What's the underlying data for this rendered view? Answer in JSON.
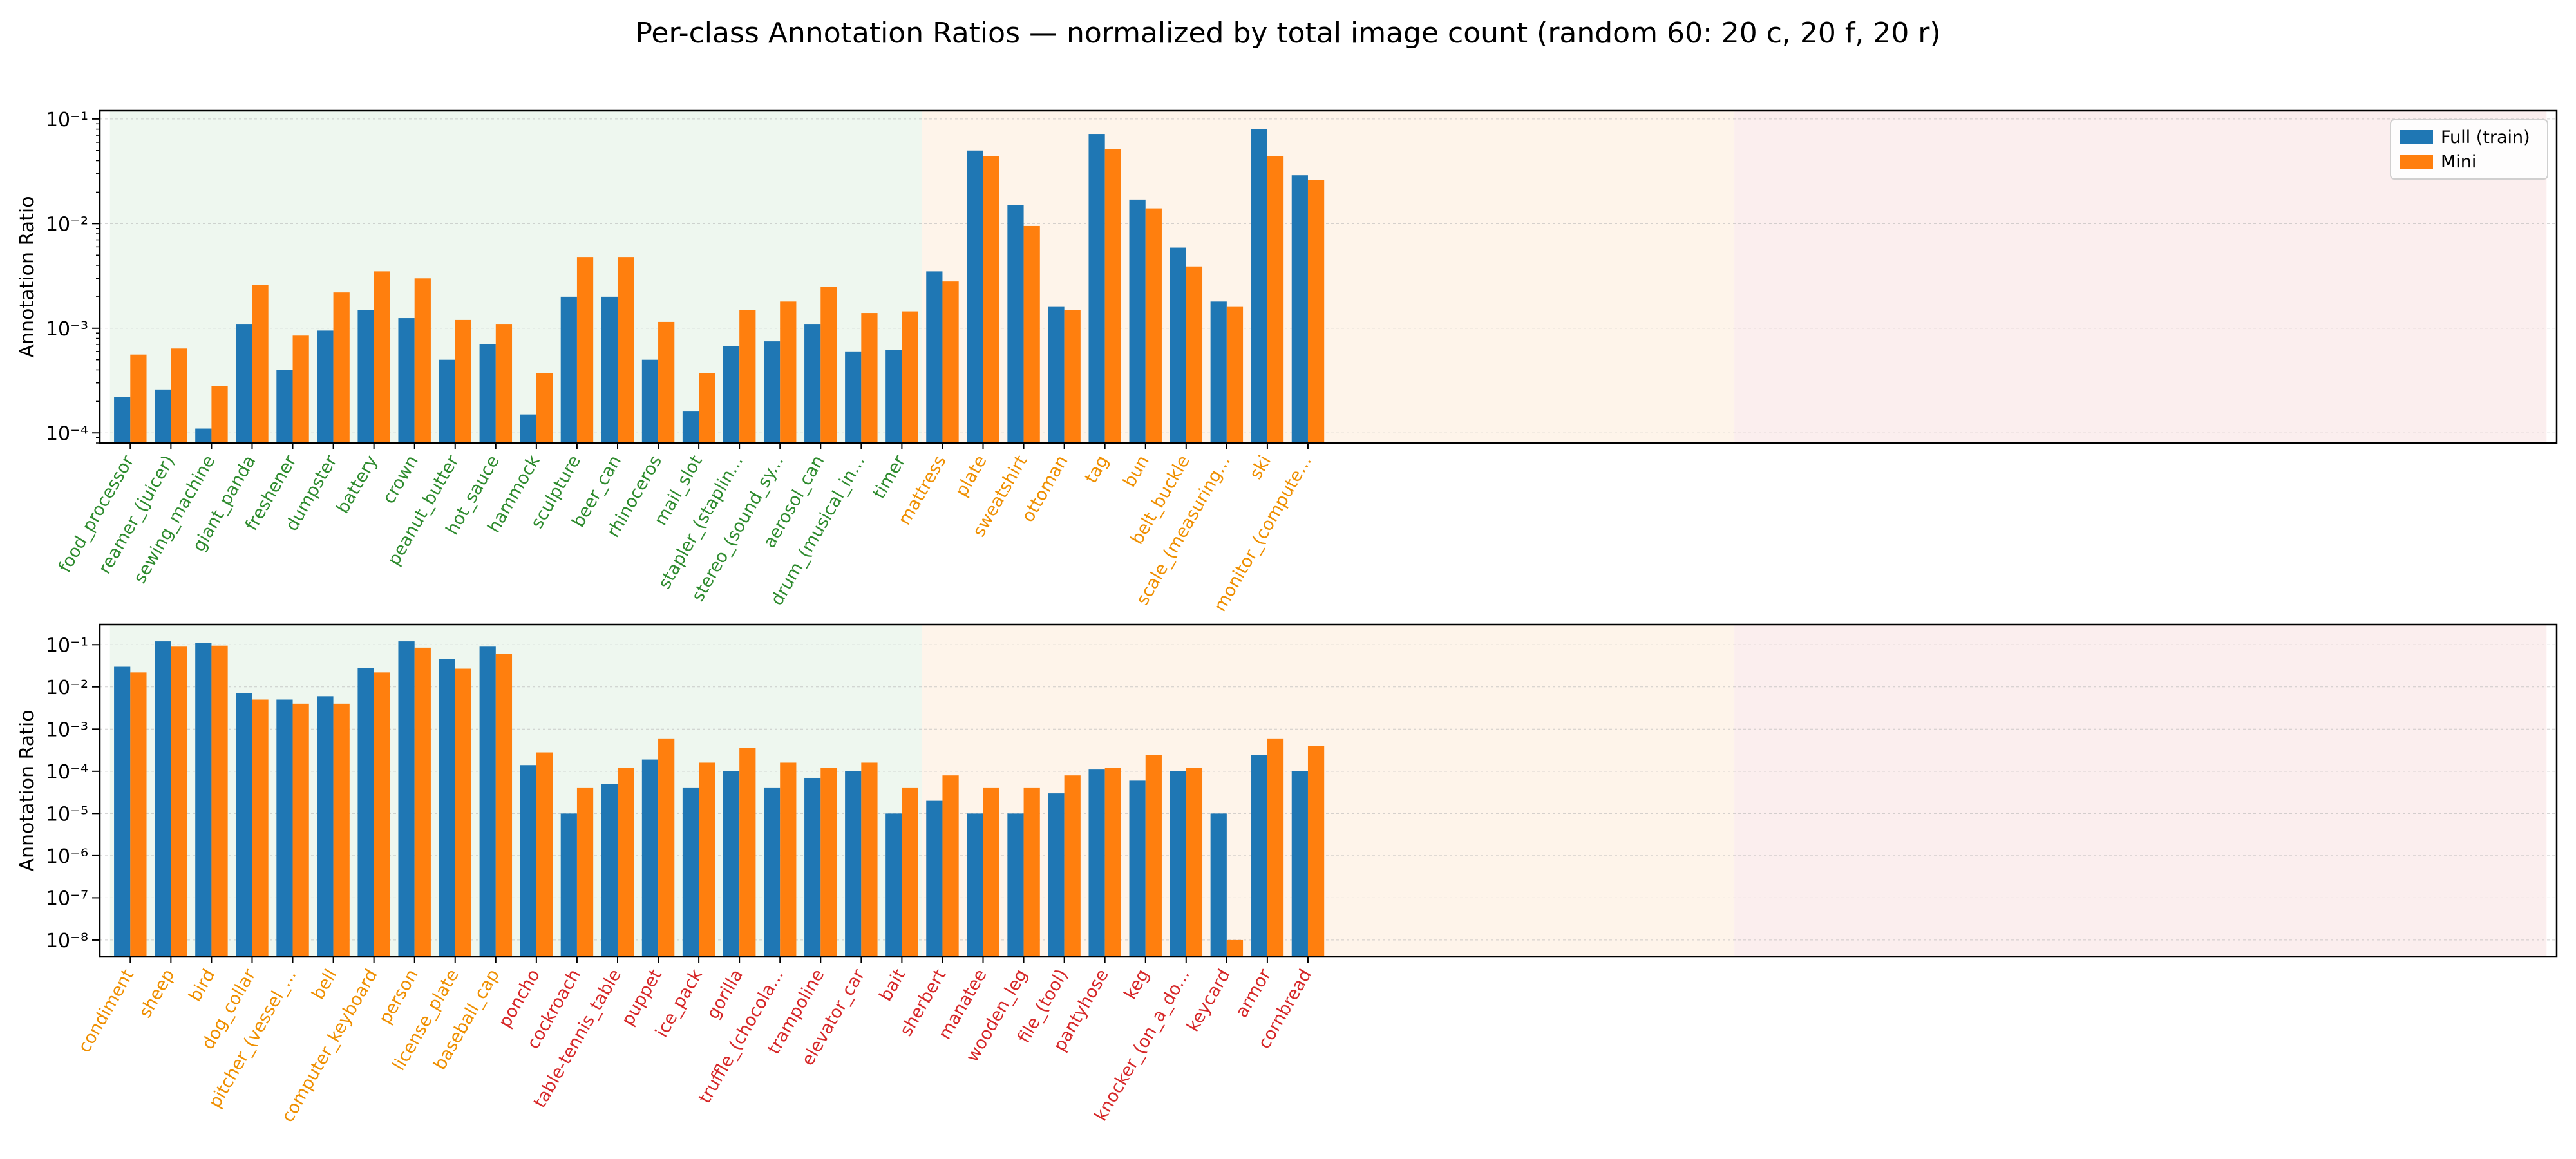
{
  "figure": {
    "title": "Per-class Annotation Ratios — normalized by total image count (random 60: 20 c, 20 f, 20 r)"
  },
  "group_colors": {
    "c": "#2e8b2e",
    "f": "#ef8f00",
    "r": "#d62728"
  },
  "chart_data": [
    {
      "type": "bar",
      "scale": "log",
      "ylabel": "Annotation Ratio",
      "ylim": [
        8e-05,
        0.12
      ],
      "grid": true,
      "legend": "top-right",
      "legend_entries": [
        "Full (train)",
        "Mini"
      ],
      "total_slots": 60,
      "bands": [
        {
          "group": "c",
          "start": 0,
          "end": 20,
          "color": "#e8f4ea"
        },
        {
          "group": "f",
          "start": 20,
          "end": 40,
          "color": "#fdf0e3"
        },
        {
          "group": "r",
          "start": 40,
          "end": 60,
          "color": "#fae8e8"
        }
      ],
      "categories": [
        "food_processor",
        "reamer_(juicer)",
        "sewing_machine",
        "giant_panda",
        "freshener",
        "dumpster",
        "battery",
        "crown",
        "peanut_butter",
        "hot_sauce",
        "hammock",
        "sculpture",
        "beer_can",
        "rhinoceros",
        "mail_slot",
        "stapler_(staplin...",
        "stereo_(sound_sy...",
        "aerosol_can",
        "drum_(musical_in...",
        "timer",
        "mattress",
        "plate",
        "sweatshirt",
        "ottoman",
        "tag",
        "bun",
        "belt_buckle",
        "scale_(measuring...",
        "ski",
        "monitor_(compute..."
      ],
      "category_groups": [
        "c",
        "c",
        "c",
        "c",
        "c",
        "c",
        "c",
        "c",
        "c",
        "c",
        "c",
        "c",
        "c",
        "c",
        "c",
        "c",
        "c",
        "c",
        "c",
        "c",
        "f",
        "f",
        "f",
        "f",
        "f",
        "f",
        "f",
        "f",
        "f",
        "f"
      ],
      "series": [
        {
          "name": "Full (train)",
          "color": "#1f77b4",
          "values": [
            0.00022,
            0.00026,
            0.00011,
            0.0011,
            0.0004,
            0.00095,
            0.0015,
            0.00125,
            0.0005,
            0.0007,
            0.00015,
            0.002,
            0.002,
            0.0005,
            0.00016,
            0.00068,
            0.00075,
            0.0011,
            0.0006,
            0.00062,
            0.0035,
            0.05,
            0.015,
            0.0016,
            0.072,
            0.017,
            0.0059,
            0.0018,
            0.08,
            0.029
          ]
        },
        {
          "name": "Mini",
          "color": "#ff7f0e",
          "values": [
            0.00056,
            0.00064,
            0.00028,
            0.0026,
            0.00085,
            0.0022,
            0.0035,
            0.003,
            0.0012,
            0.0011,
            0.00037,
            0.0048,
            0.0048,
            0.00115,
            0.00037,
            0.0015,
            0.0018,
            0.0025,
            0.0014,
            0.00145,
            0.0028,
            0.044,
            0.0095,
            0.0015,
            0.052,
            0.014,
            0.0039,
            0.0016,
            0.044,
            0.026
          ]
        }
      ]
    },
    {
      "type": "bar",
      "scale": "log",
      "ylabel": "Annotation Ratio",
      "ylim": [
        4e-09,
        0.3
      ],
      "grid": true,
      "legend": "none",
      "total_slots": 60,
      "bands": [
        {
          "group": "c",
          "start": 0,
          "end": 20,
          "color": "#e8f4ea"
        },
        {
          "group": "f",
          "start": 20,
          "end": 40,
          "color": "#fdf0e3"
        },
        {
          "group": "r",
          "start": 40,
          "end": 60,
          "color": "#fae8e8"
        }
      ],
      "categories": [
        "condiment",
        "sheep",
        "bird",
        "dog_collar",
        "pitcher_(vessel_...",
        "bell",
        "computer_keyboard",
        "person",
        "license_plate",
        "baseball_cap",
        "poncho",
        "cockroach",
        "table-tennis_table",
        "puppet",
        "ice_pack",
        "gorilla",
        "truffle_(chocola...",
        "trampoline",
        "elevator_car",
        "bait",
        "sherbert",
        "manatee",
        "wooden_leg",
        "file_(tool)",
        "pantyhose",
        "keg",
        "knocker_(on_a_do...",
        "keycard",
        "armor",
        "cornbread"
      ],
      "category_groups": [
        "f",
        "f",
        "f",
        "f",
        "f",
        "f",
        "f",
        "f",
        "f",
        "f",
        "r",
        "r",
        "r",
        "r",
        "r",
        "r",
        "r",
        "r",
        "r",
        "r",
        "r",
        "r",
        "r",
        "r",
        "r",
        "r",
        "r",
        "r",
        "r",
        "r"
      ],
      "series": [
        {
          "name": "Full (train)",
          "color": "#1f77b4",
          "values": [
            0.03,
            0.12,
            0.11,
            0.007,
            0.005,
            0.006,
            0.028,
            0.12,
            0.045,
            0.09,
            0.00014,
            1e-05,
            5e-05,
            0.00019,
            4e-05,
            0.0001,
            4e-05,
            7e-05,
            0.0001,
            1e-05,
            2e-05,
            1e-05,
            1e-05,
            3e-05,
            0.00011,
            6e-05,
            0.0001,
            1e-05,
            0.00024,
            0.0001
          ]
        },
        {
          "name": "Mini",
          "color": "#ff7f0e",
          "values": [
            0.022,
            0.09,
            0.095,
            0.005,
            0.004,
            0.004,
            0.022,
            0.085,
            0.027,
            0.06,
            0.00028,
            4e-05,
            0.00012,
            0.0006,
            0.00016,
            0.00036,
            0.00016,
            0.00012,
            0.00016,
            4e-05,
            8e-05,
            4e-05,
            4e-05,
            8e-05,
            0.00012,
            0.00024,
            0.00012,
            1e-08,
            0.0006,
            0.0004
          ]
        }
      ]
    }
  ]
}
